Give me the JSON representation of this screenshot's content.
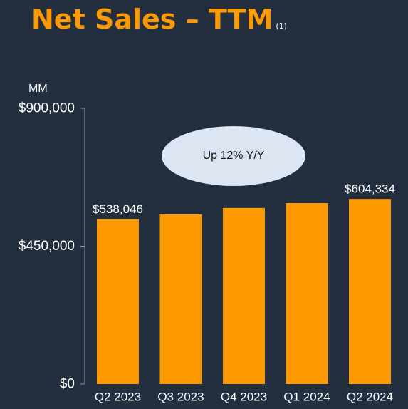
{
  "title": "Net Sales – TTM",
  "title_footnote": "(1)",
  "colors": {
    "background": "#232f3e",
    "accent": "#ff9900",
    "text": "#ffffff",
    "axis": "#8a96a6",
    "callout_fill": "#dce6f2"
  },
  "chart_data": {
    "type": "bar",
    "unit_label": "MM",
    "categories": [
      "Q2 2023",
      "Q3 2023",
      "Q4 2023",
      "Q1 2024",
      "Q2 2024"
    ],
    "values": [
      538046,
      554028,
      574785,
      590740,
      604334
    ],
    "ylim": [
      0,
      900000
    ],
    "yticks": [
      0,
      450000,
      900000
    ],
    "ytick_labels": [
      "$0",
      "$450,000",
      "$900,000"
    ],
    "data_labels": [
      "$538,046",
      "",
      "",
      "",
      "$604,334"
    ],
    "annotation": "Up 12% Y/Y",
    "grid": false,
    "legend": "none"
  }
}
